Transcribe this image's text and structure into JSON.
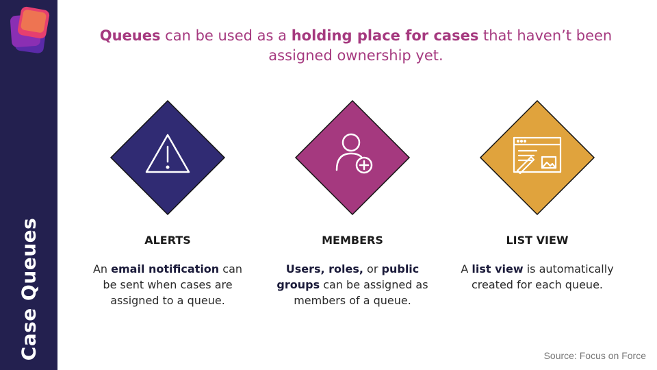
{
  "sidebar": {
    "title": "Case Queues",
    "logo_colors": [
      "#e63f6f",
      "#8a2fb3",
      "#5a2aa8"
    ]
  },
  "headline": {
    "p1": "Queues",
    "p2": " can be used as a ",
    "p3": "holding place for cases",
    "p4": " that haven’t been assigned ownership yet.",
    "color": "#a5397f"
  },
  "cards": [
    {
      "title": "ALERTS",
      "icon": "warning-triangle-icon",
      "color": "#302b73",
      "text": {
        "p1": "An ",
        "p2": "email notification",
        "p3": " can be sent when cases are assigned to a queue."
      }
    },
    {
      "title": "MEMBERS",
      "icon": "add-user-icon",
      "color": "#a5397f",
      "text": {
        "p1": "Users, roles,",
        "p2": " or ",
        "p3": "public groups",
        "p4": " can be assigned as members of a queue."
      }
    },
    {
      "title": "LIST VIEW",
      "icon": "list-view-window-icon",
      "color": "#e0a33d",
      "text": {
        "p1": "A ",
        "p2": "list view",
        "p3": " is automatically created for each queue."
      }
    }
  ],
  "source": "Source: Focus on Force"
}
